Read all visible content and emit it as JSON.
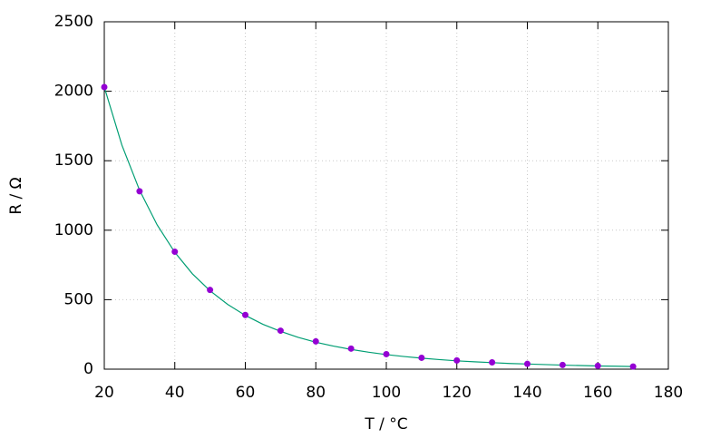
{
  "chart_data": {
    "type": "scatter",
    "xlabel": "T / °C",
    "ylabel": "R / Ω",
    "xlim": [
      20,
      180
    ],
    "ylim": [
      0,
      2500
    ],
    "xticks": [
      20,
      40,
      60,
      80,
      100,
      120,
      140,
      160,
      180
    ],
    "yticks": [
      0,
      500,
      1000,
      1500,
      2000,
      2500
    ],
    "grid": true,
    "series": [
      {
        "type": "line",
        "color": "#009e73",
        "x": [
          20,
          25,
          30,
          35,
          40,
          45,
          50,
          55,
          60,
          65,
          70,
          75,
          80,
          85,
          90,
          95,
          100,
          105,
          110,
          115,
          120,
          125,
          130,
          135,
          140,
          145,
          150,
          155,
          160,
          165,
          170
        ],
        "values": [
          2030,
          1612,
          1288,
          1038,
          841,
          686,
          564,
          466,
          387,
          323,
          272,
          229,
          194,
          166,
          142,
          122,
          105,
          91,
          79,
          69,
          60,
          53,
          47,
          41,
          37,
          33,
          29,
          26,
          23,
          21,
          19
        ]
      },
      {
        "type": "scatter",
        "color": "#9400d3",
        "x": [
          20,
          30,
          40,
          50,
          60,
          70,
          80,
          90,
          100,
          110,
          120,
          130,
          140,
          150,
          160,
          170
        ],
        "values": [
          2030,
          1280,
          845,
          570,
          390,
          277,
          200,
          148,
          108,
          82,
          63,
          49,
          38,
          30,
          24,
          19
        ]
      }
    ]
  }
}
